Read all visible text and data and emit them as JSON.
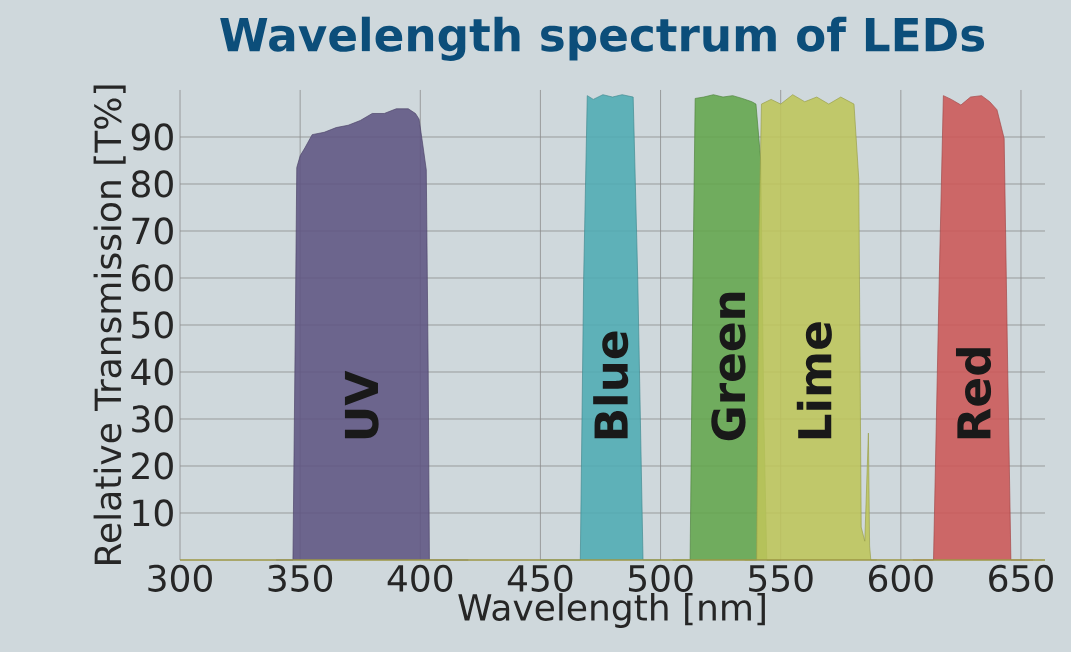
{
  "chart_data": {
    "type": "area",
    "title": "Wavelength spectrum of LEDs",
    "xlabel": "Wavelength [nm]",
    "ylabel": "Relative Transmission [T%]",
    "xlim": [
      300,
      660
    ],
    "ylim": [
      0,
      100
    ],
    "xticks": [
      300,
      350,
      400,
      450,
      500,
      550,
      600,
      650
    ],
    "yticks": [
      10,
      20,
      30,
      40,
      50,
      60,
      70,
      80,
      90
    ],
    "grid": true,
    "series": [
      {
        "name": "UV",
        "color": "#5e5482",
        "x": [
          340,
          347,
          348,
          348.6,
          350,
          352,
          355,
          360,
          365,
          370,
          375,
          380,
          385,
          390,
          395,
          398,
          399.5,
          401,
          402.5,
          403.3,
          403.8,
          420
        ],
        "values": [
          0,
          0,
          50,
          83.5,
          86,
          87.7,
          90.5,
          91,
          92,
          92.5,
          93.5,
          95,
          95,
          96,
          96,
          95,
          93.8,
          88.5,
          83,
          40,
          0,
          0
        ]
      },
      {
        "name": "Blue",
        "color": "#4fabb3",
        "x": [
          450,
          466.6,
          468,
          469.5,
          472,
          476,
          480,
          484,
          488.6,
          490.5,
          492.7,
          500
        ],
        "values": [
          0,
          0,
          60,
          98.8,
          98,
          99,
          98.5,
          99,
          98.5,
          60,
          0,
          0
        ]
      },
      {
        "name": "Green",
        "color": "#63a54c",
        "x": [
          505,
          512.3,
          513.5,
          514.4,
          518,
          522,
          526,
          530,
          534,
          538,
          539.7,
          541.7,
          543,
          544.2,
          550
        ],
        "values": [
          0,
          0,
          60,
          98.2,
          98.5,
          99,
          98.5,
          98.8,
          98.2,
          97.5,
          97,
          85,
          30,
          0,
          0
        ]
      },
      {
        "name": "Lime",
        "color": "#bec55a",
        "x": [
          535,
          540,
          541,
          542,
          546,
          550,
          555,
          560,
          565,
          570,
          575,
          580.5,
          582.5,
          583.5,
          585,
          586.5,
          587,
          587.5,
          590
        ],
        "values": [
          0,
          0,
          70,
          97,
          98,
          97,
          99,
          97.5,
          98.5,
          97,
          98.5,
          97,
          81,
          7,
          4,
          27,
          3,
          0,
          0
        ]
      },
      {
        "name": "Red",
        "color": "#cc5656",
        "x": [
          605,
          613.6,
          616,
          617.7,
          621,
          625,
          629,
          633.6,
          637,
          640,
          643,
          644.5,
          645.8,
          655
        ],
        "values": [
          0,
          0,
          60,
          98.8,
          98,
          96.8,
          98.5,
          98.8,
          97.5,
          95.8,
          89.7,
          40,
          0,
          0
        ]
      }
    ]
  }
}
